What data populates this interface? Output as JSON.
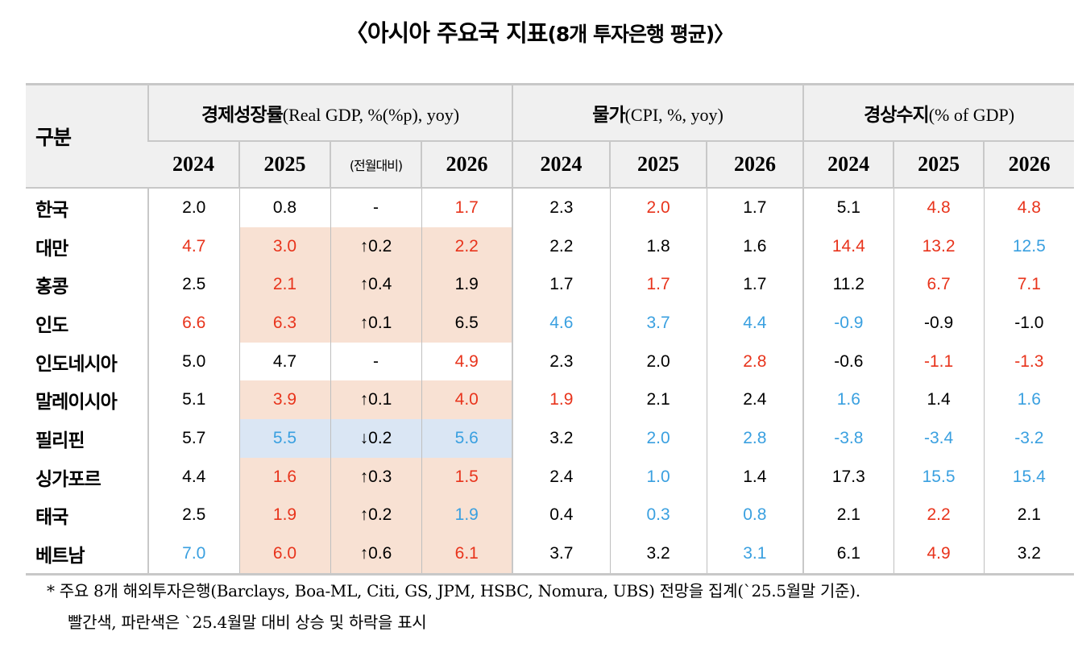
{
  "title": "〈아시아 주요국 지표(8개 투자은행 평균)〉",
  "title_main": "〈아시아 주요국 지표",
  "title_paren": "(8개 투자은행 평균)〉",
  "colors": {
    "increase_text": "#e8341c",
    "decrease_text": "#3aa0e0",
    "increase_fill": "#f8e1d3",
    "decrease_fill": "#dae6f4",
    "header_fill": "#f0f0f0"
  },
  "table": {
    "row_header": "구분",
    "groups": [
      {
        "label_ko": "경제성장률",
        "label_en": "(Real GDP, %(%p), yoy)",
        "columns": [
          "2024",
          "2025",
          "(전월대비)",
          "2026"
        ]
      },
      {
        "label_ko": "물가",
        "label_en": "(CPI, %, yoy)",
        "columns": [
          "2024",
          "2025",
          "2026"
        ]
      },
      {
        "label_ko": "경상수지",
        "label_en": "(% of GDP)",
        "columns": [
          "2024",
          "2025",
          "2026"
        ]
      }
    ],
    "rows": [
      {
        "country": "한국",
        "fill": "none",
        "cells": [
          {
            "v": "2.0",
            "c": "black"
          },
          {
            "v": "0.8",
            "c": "black"
          },
          {
            "v": "-",
            "c": "black"
          },
          {
            "v": "1.7",
            "c": "red"
          },
          {
            "v": "2.3",
            "c": "black"
          },
          {
            "v": "2.0",
            "c": "red"
          },
          {
            "v": "1.7",
            "c": "black"
          },
          {
            "v": "5.1",
            "c": "black"
          },
          {
            "v": "4.8",
            "c": "red"
          },
          {
            "v": "4.8",
            "c": "red"
          }
        ]
      },
      {
        "country": "대만",
        "fill": "up",
        "cells": [
          {
            "v": "4.7",
            "c": "red"
          },
          {
            "v": "3.0",
            "c": "red"
          },
          {
            "v": "↑0.2",
            "c": "black"
          },
          {
            "v": "2.2",
            "c": "red"
          },
          {
            "v": "2.2",
            "c": "black"
          },
          {
            "v": "1.8",
            "c": "black"
          },
          {
            "v": "1.6",
            "c": "black"
          },
          {
            "v": "14.4",
            "c": "red"
          },
          {
            "v": "13.2",
            "c": "red"
          },
          {
            "v": "12.5",
            "c": "blue"
          }
        ]
      },
      {
        "country": "홍콩",
        "fill": "up",
        "cells": [
          {
            "v": "2.5",
            "c": "black"
          },
          {
            "v": "2.1",
            "c": "red"
          },
          {
            "v": "↑0.4",
            "c": "black"
          },
          {
            "v": "1.9",
            "c": "black"
          },
          {
            "v": "1.7",
            "c": "black"
          },
          {
            "v": "1.7",
            "c": "red"
          },
          {
            "v": "1.7",
            "c": "black"
          },
          {
            "v": "11.2",
            "c": "black"
          },
          {
            "v": "6.7",
            "c": "red"
          },
          {
            "v": "7.1",
            "c": "red"
          }
        ]
      },
      {
        "country": "인도",
        "fill": "up",
        "cells": [
          {
            "v": "6.6",
            "c": "red"
          },
          {
            "v": "6.3",
            "c": "red"
          },
          {
            "v": "↑0.1",
            "c": "black"
          },
          {
            "v": "6.5",
            "c": "black"
          },
          {
            "v": "4.6",
            "c": "blue"
          },
          {
            "v": "3.7",
            "c": "blue"
          },
          {
            "v": "4.4",
            "c": "blue"
          },
          {
            "v": "-0.9",
            "c": "blue"
          },
          {
            "v": "-0.9",
            "c": "black"
          },
          {
            "v": "-1.0",
            "c": "black"
          }
        ]
      },
      {
        "country": "인도네시아",
        "fill": "none",
        "cells": [
          {
            "v": "5.0",
            "c": "black"
          },
          {
            "v": "4.7",
            "c": "black"
          },
          {
            "v": "-",
            "c": "black"
          },
          {
            "v": "4.9",
            "c": "red"
          },
          {
            "v": "2.3",
            "c": "black"
          },
          {
            "v": "2.0",
            "c": "black"
          },
          {
            "v": "2.8",
            "c": "red"
          },
          {
            "v": "-0.6",
            "c": "black"
          },
          {
            "v": "-1.1",
            "c": "red"
          },
          {
            "v": "-1.3",
            "c": "red"
          }
        ]
      },
      {
        "country": "말레이시아",
        "fill": "up",
        "cells": [
          {
            "v": "5.1",
            "c": "black"
          },
          {
            "v": "3.9",
            "c": "red"
          },
          {
            "v": "↑0.1",
            "c": "black"
          },
          {
            "v": "4.0",
            "c": "red"
          },
          {
            "v": "1.9",
            "c": "red"
          },
          {
            "v": "2.1",
            "c": "black"
          },
          {
            "v": "2.4",
            "c": "black"
          },
          {
            "v": "1.6",
            "c": "blue"
          },
          {
            "v": "1.4",
            "c": "black"
          },
          {
            "v": "1.6",
            "c": "blue"
          }
        ]
      },
      {
        "country": "필리핀",
        "fill": "down",
        "cells": [
          {
            "v": "5.7",
            "c": "black"
          },
          {
            "v": "5.5",
            "c": "blue"
          },
          {
            "v": "↓0.2",
            "c": "black"
          },
          {
            "v": "5.6",
            "c": "blue"
          },
          {
            "v": "3.2",
            "c": "black"
          },
          {
            "v": "2.0",
            "c": "blue"
          },
          {
            "v": "2.8",
            "c": "blue"
          },
          {
            "v": "-3.8",
            "c": "blue"
          },
          {
            "v": "-3.4",
            "c": "blue"
          },
          {
            "v": "-3.2",
            "c": "blue"
          }
        ]
      },
      {
        "country": "싱가포르",
        "fill": "up",
        "cells": [
          {
            "v": "4.4",
            "c": "black"
          },
          {
            "v": "1.6",
            "c": "red"
          },
          {
            "v": "↑0.3",
            "c": "black"
          },
          {
            "v": "1.5",
            "c": "red"
          },
          {
            "v": "2.4",
            "c": "black"
          },
          {
            "v": "1.0",
            "c": "blue"
          },
          {
            "v": "1.4",
            "c": "black"
          },
          {
            "v": "17.3",
            "c": "black"
          },
          {
            "v": "15.5",
            "c": "blue"
          },
          {
            "v": "15.4",
            "c": "blue"
          }
        ]
      },
      {
        "country": "태국",
        "fill": "up",
        "cells": [
          {
            "v": "2.5",
            "c": "black"
          },
          {
            "v": "1.9",
            "c": "red"
          },
          {
            "v": "↑0.2",
            "c": "black"
          },
          {
            "v": "1.9",
            "c": "blue"
          },
          {
            "v": "0.4",
            "c": "black"
          },
          {
            "v": "0.3",
            "c": "blue"
          },
          {
            "v": "0.8",
            "c": "blue"
          },
          {
            "v": "2.1",
            "c": "black"
          },
          {
            "v": "2.2",
            "c": "red"
          },
          {
            "v": "2.1",
            "c": "black"
          }
        ]
      },
      {
        "country": "베트남",
        "fill": "up",
        "cells": [
          {
            "v": "7.0",
            "c": "blue"
          },
          {
            "v": "6.0",
            "c": "red"
          },
          {
            "v": "↑0.6",
            "c": "black"
          },
          {
            "v": "6.1",
            "c": "red"
          },
          {
            "v": "3.7",
            "c": "black"
          },
          {
            "v": "3.2",
            "c": "black"
          },
          {
            "v": "3.1",
            "c": "blue"
          },
          {
            "v": "6.1",
            "c": "black"
          },
          {
            "v": "4.9",
            "c": "red"
          },
          {
            "v": "3.2",
            "c": "black"
          }
        ]
      }
    ]
  },
  "footnotes": [
    "* 주요 8개 해외투자은행(Barclays, Boa-ML, Citi, GS, JPM, HSBC, Nomura, UBS) 전망을 집계(`25.5월말 기준).",
    "빨간색, 파란색은 `25.4월말 대비 상승 및 하락을 표시"
  ]
}
